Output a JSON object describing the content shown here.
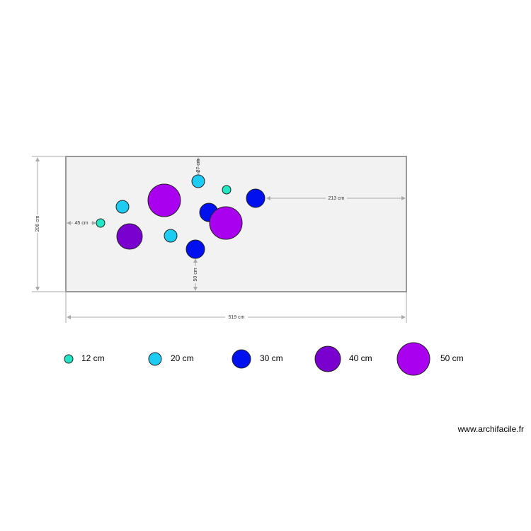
{
  "dimensions": {
    "height": "206 cm",
    "width": "519 cm",
    "left_offset": "45 cm",
    "right_offset": "213 cm",
    "top_offset": "27 cm",
    "bottom_offset": "50 cm"
  },
  "legend": [
    "12 cm",
    "20 cm",
    "30 cm",
    "40 cm",
    "50 cm"
  ],
  "watermark": "www.archifacile.fr"
}
